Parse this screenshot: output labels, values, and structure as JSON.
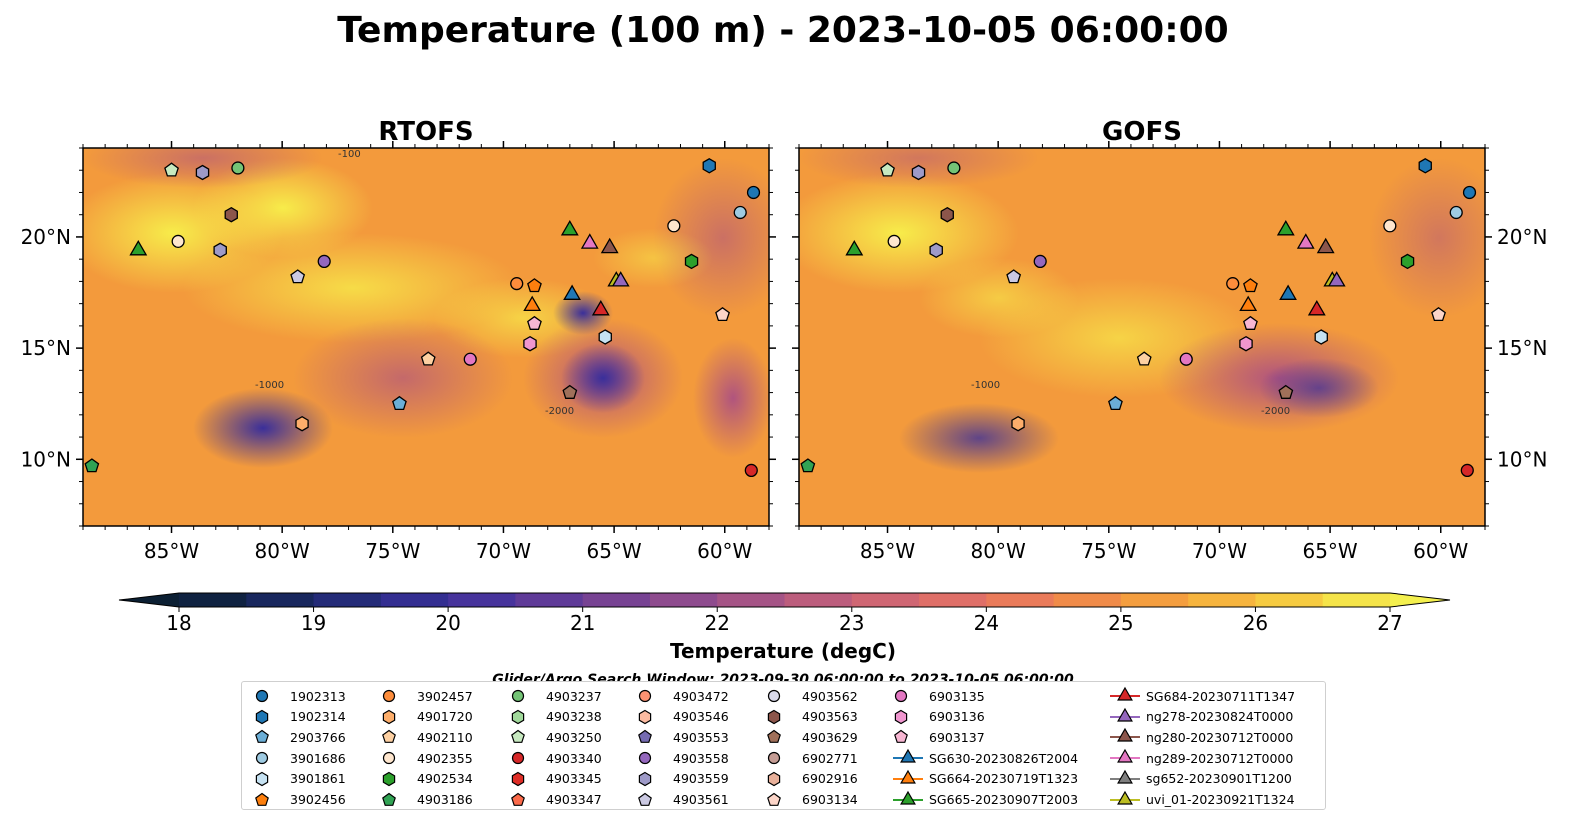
{
  "figure_title": "Temperature (100 m) - 2023-10-05 06:00:00",
  "search_window": "Glider/Argo Search Window: 2023-09-30 06:00:00 to 2023-10-05 06:00:00",
  "chart_data": {
    "type": "heatmap",
    "panels": [
      {
        "title": "RTOFS"
      },
      {
        "title": "GOFS"
      }
    ],
    "xlim": [
      -89,
      -58
    ],
    "ylim": [
      7,
      24
    ],
    "xticks": [
      -85,
      -80,
      -75,
      -70,
      -65,
      -60
    ],
    "xtick_labels": [
      "85°W",
      "80°W",
      "75°W",
      "70°W",
      "65°W",
      "60°W"
    ],
    "yticks": [
      10,
      15,
      20
    ],
    "ytick_labels": [
      "10°N",
      "15°N",
      "20°N"
    ],
    "colorbar": {
      "label": "Temperature (degC)",
      "min": 18,
      "max": 27,
      "step": 0.5,
      "extend": "both",
      "ticks": [
        18,
        19,
        20,
        21,
        22,
        23,
        24,
        25,
        26,
        27
      ],
      "tick_labels": [
        "18",
        "19",
        "20",
        "21",
        "22",
        "23",
        "24",
        "25",
        "26",
        "27"
      ]
    },
    "contour_labels": [
      "-1000",
      "-2000",
      "-100"
    ],
    "colors": {
      "land": "#d2b48c",
      "shelf": "#9ab8df"
    }
  },
  "legend": {
    "items": [
      {
        "label": "1902313",
        "marker": "circle",
        "color": "#1f77b4"
      },
      {
        "label": "1902314",
        "marker": "hexagon",
        "color": "#1f77b4"
      },
      {
        "label": "2903766",
        "marker": "pentagon",
        "color": "#6baed6"
      },
      {
        "label": "3901686",
        "marker": "circle",
        "color": "#9ecae1"
      },
      {
        "label": "3901861",
        "marker": "hexagon",
        "color": "#c6e2f2"
      },
      {
        "label": "3902456",
        "marker": "pentagon",
        "color": "#fd7f0e"
      },
      {
        "label": "3902457",
        "marker": "circle",
        "color": "#fd8d3c"
      },
      {
        "label": "4901720",
        "marker": "hexagon",
        "color": "#fdae6b"
      },
      {
        "label": "4902110",
        "marker": "pentagon",
        "color": "#fdd0a2"
      },
      {
        "label": "4902355",
        "marker": "circle",
        "color": "#fee6ce"
      },
      {
        "label": "4902534",
        "marker": "hexagon",
        "color": "#2ca02c"
      },
      {
        "label": "4903186",
        "marker": "pentagon",
        "color": "#31a354"
      },
      {
        "label": "4903237",
        "marker": "circle",
        "color": "#74c476"
      },
      {
        "label": "4903238",
        "marker": "hexagon",
        "color": "#a1d99b"
      },
      {
        "label": "4903250",
        "marker": "pentagon",
        "color": "#c7e9c0"
      },
      {
        "label": "4903340",
        "marker": "circle",
        "color": "#d62728"
      },
      {
        "label": "4903345",
        "marker": "hexagon",
        "color": "#de2d26"
      },
      {
        "label": "4903347",
        "marker": "pentagon",
        "color": "#fb6a4a"
      },
      {
        "label": "4903472",
        "marker": "circle",
        "color": "#fc9272"
      },
      {
        "label": "4903546",
        "marker": "hexagon",
        "color": "#fcbba1"
      },
      {
        "label": "4903553",
        "marker": "pentagon",
        "color": "#756bb1"
      },
      {
        "label": "4903558",
        "marker": "circle",
        "color": "#9467bd"
      },
      {
        "label": "4903559",
        "marker": "hexagon",
        "color": "#9e9ac8"
      },
      {
        "label": "4903561",
        "marker": "pentagon",
        "color": "#cbc9e2"
      },
      {
        "label": "4903562",
        "marker": "circle",
        "color": "#dadaeb"
      },
      {
        "label": "4903563",
        "marker": "hexagon",
        "color": "#8c564b"
      },
      {
        "label": "4903629",
        "marker": "pentagon",
        "color": "#a0705a"
      },
      {
        "label": "6902771",
        "marker": "circle",
        "color": "#c49c94"
      },
      {
        "label": "6902916",
        "marker": "hexagon",
        "color": "#e8b09a"
      },
      {
        "label": "6903134",
        "marker": "pentagon",
        "color": "#fcd5c8"
      },
      {
        "label": "6903135",
        "marker": "circle",
        "color": "#e377c2"
      },
      {
        "label": "6903136",
        "marker": "hexagon",
        "color": "#f096cf"
      },
      {
        "label": "6903137",
        "marker": "pentagon",
        "color": "#f7b6d2"
      },
      {
        "label": "SG630-20230826T2004",
        "marker": "triangle-line",
        "color": "#1f77b4"
      },
      {
        "label": "SG664-20230719T1323",
        "marker": "triangle-line",
        "color": "#ff7f0e"
      },
      {
        "label": "SG665-20230907T2003",
        "marker": "triangle-line",
        "color": "#2ca02c"
      },
      {
        "label": "SG684-20230711T1347",
        "marker": "triangle-line",
        "color": "#d62728"
      },
      {
        "label": "ng278-20230824T0000",
        "marker": "triangle-line",
        "color": "#9467bd"
      },
      {
        "label": "ng280-20230712T0000",
        "marker": "triangle-line",
        "color": "#8c564b"
      },
      {
        "label": "ng289-20230712T0000",
        "marker": "triangle-line",
        "color": "#e377c2"
      },
      {
        "label": "sg652-20230901T1200",
        "marker": "triangle-line",
        "color": "#7f7f7f"
      },
      {
        "label": "uvi_01-20230921T1324",
        "marker": "triangle-line",
        "color": "#bcbd22"
      }
    ]
  }
}
